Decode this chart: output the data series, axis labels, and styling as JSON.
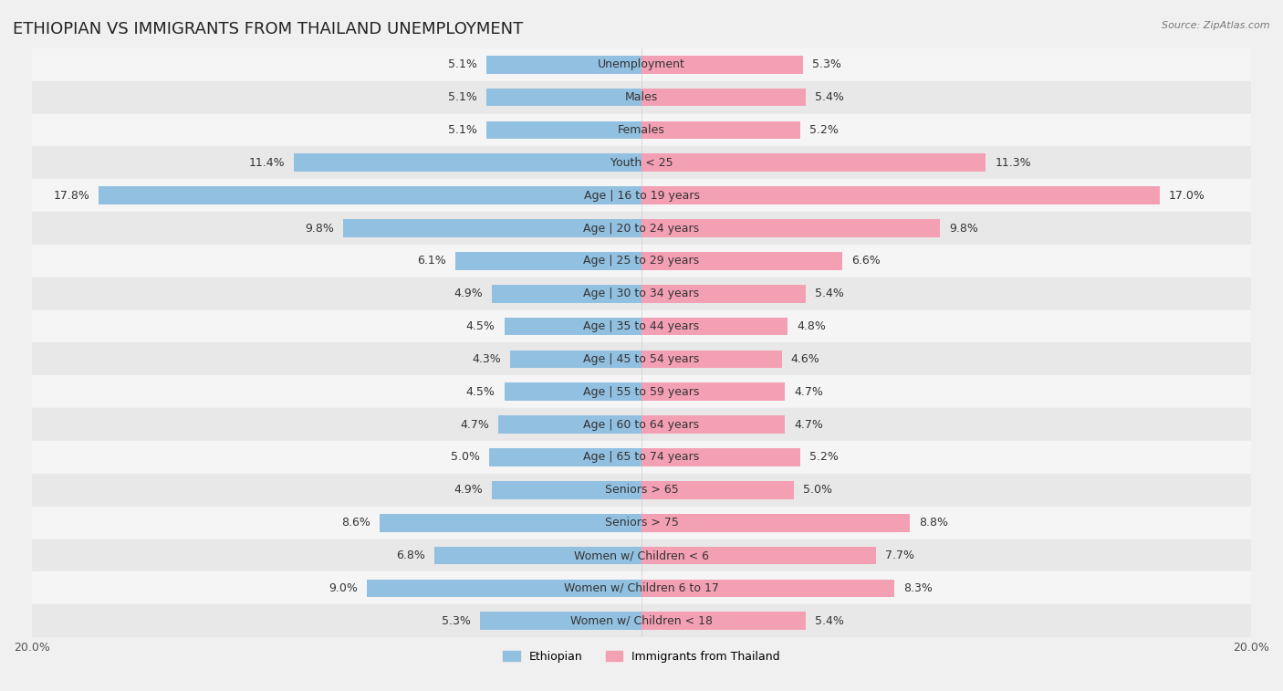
{
  "title": "ETHIOPIAN VS IMMIGRANTS FROM THAILAND UNEMPLOYMENT",
  "source": "Source: ZipAtlas.com",
  "categories": [
    "Unemployment",
    "Males",
    "Females",
    "Youth < 25",
    "Age | 16 to 19 years",
    "Age | 20 to 24 years",
    "Age | 25 to 29 years",
    "Age | 30 to 34 years",
    "Age | 35 to 44 years",
    "Age | 45 to 54 years",
    "Age | 55 to 59 years",
    "Age | 60 to 64 years",
    "Age | 65 to 74 years",
    "Seniors > 65",
    "Seniors > 75",
    "Women w/ Children < 6",
    "Women w/ Children 6 to 17",
    "Women w/ Children < 18"
  ],
  "ethiopian": [
    5.1,
    5.1,
    5.1,
    11.4,
    17.8,
    9.8,
    6.1,
    4.9,
    4.5,
    4.3,
    4.5,
    4.7,
    5.0,
    4.9,
    8.6,
    6.8,
    9.0,
    5.3
  ],
  "thailand": [
    5.3,
    5.4,
    5.2,
    11.3,
    17.0,
    9.8,
    6.6,
    5.4,
    4.8,
    4.6,
    4.7,
    4.7,
    5.2,
    5.0,
    8.8,
    7.7,
    8.3,
    5.4
  ],
  "ethiopian_color": "#92c0e0",
  "thailand_color": "#f4a0b4",
  "ethiopian_label": "Ethiopian",
  "thailand_label": "Immigrants from Thailand",
  "background_color": "#f0f0f0",
  "row_color_even": "#e8e8e8",
  "row_color_odd": "#f5f5f5",
  "axis_limit": 20.0,
  "value_fontsize": 9,
  "label_fontsize": 9,
  "title_fontsize": 13,
  "bar_height": 0.55
}
